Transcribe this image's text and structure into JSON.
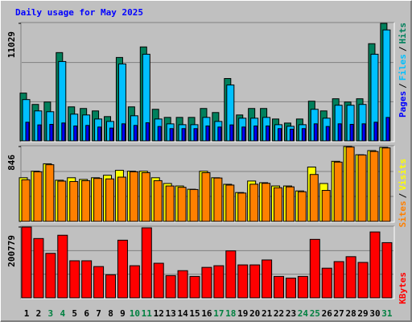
{
  "chart_data": {
    "type": "bar",
    "title": "Daily usage for May 2025",
    "categories": [
      "1",
      "2",
      "3",
      "4",
      "5",
      "6",
      "7",
      "8",
      "9",
      "10",
      "11",
      "12",
      "13",
      "14",
      "15",
      "16",
      "17",
      "18",
      "19",
      "20",
      "21",
      "22",
      "23",
      "24",
      "25",
      "26",
      "27",
      "28",
      "29",
      "30",
      "31"
    ],
    "label_colors": [
      "#000000",
      "#000000",
      "#008040",
      "#008040",
      "#000000",
      "#000000",
      "#000000",
      "#000000",
      "#000000",
      "#008040",
      "#008040",
      "#000000",
      "#000000",
      "#000000",
      "#000000",
      "#000000",
      "#008040",
      "#008040",
      "#000000",
      "#000000",
      "#000000",
      "#000000",
      "#000000",
      "#008040",
      "#008040",
      "#000000",
      "#000000",
      "#000000",
      "#000000",
      "#000000",
      "#008040"
    ],
    "legend_separator": "/",
    "panels": [
      {
        "ylim": [
          0,
          11029
        ],
        "yticks": [
          11029
        ],
        "series": [
          {
            "name": "Hits",
            "color": "#00805C",
            "values": [
              4484,
              3420,
              3648,
              8284,
              3192,
              3040,
              2812,
              2280,
              7828,
              3192,
              8816,
              2964,
              2204,
              2204,
              2204,
              3040,
              2660,
              5852,
              2432,
              3040,
              3040,
              2052,
              1672,
              2052,
              3724,
              2812,
              3952,
              3648,
              3952,
              9120,
              11029
            ]
          },
          {
            "name": "Files",
            "color": "#00C0FF",
            "values": [
              3876,
              2812,
              2736,
              7448,
              2508,
              2432,
              2052,
              1824,
              7220,
              2356,
              8132,
              2052,
              1596,
              1520,
              1520,
              2204,
              1824,
              5244,
              2128,
              2128,
              2204,
              1520,
              1368,
              1520,
              2964,
              2128,
              3344,
              3344,
              3420,
              8132,
              10412
            ]
          },
          {
            "name": "Pages",
            "color": "#0000FF",
            "values": [
              1750,
              1500,
              1550,
              1680,
              1400,
              1450,
              1300,
              1200,
              1600,
              1450,
              1700,
              1350,
              1150,
              1150,
              1150,
              1400,
              1300,
              1500,
              1300,
              1400,
              1400,
              1150,
              1100,
              1150,
              1600,
              1350,
              1600,
              1550,
              1600,
              1750,
              2200
            ]
          }
        ]
      },
      {
        "ylim": [
          0,
          846
        ],
        "yticks": [
          846
        ],
        "series": [
          {
            "name": "Visits",
            "color": "#FFFF00",
            "values": [
              493,
              567,
              651,
              465,
              493,
              474,
              493,
              521,
              577,
              567,
              567,
              493,
              428,
              400,
              363,
              567,
              493,
              419,
              326,
              456,
              437,
              400,
              400,
              344,
              614,
              428,
              679,
              846,
              753,
              800,
              837
            ]
          },
          {
            "name": "Sites",
            "color": "#FF8000",
            "values": [
              470,
              560,
              640,
              455,
              450,
              460,
              485,
              480,
              500,
              560,
              550,
              460,
              400,
              385,
              360,
              550,
              490,
              410,
              320,
              420,
              430,
              380,
              390,
              335,
              530,
              350,
              670,
              840,
              750,
              790,
              830
            ]
          }
        ]
      },
      {
        "ylim": [
          0,
          200779
        ],
        "yticks": [
          200779
        ],
        "series": [
          {
            "name": "KBytes",
            "color": "#FF0000",
            "values": [
              200779,
              168120,
              126090,
              177460,
              105075,
              105075,
              88730,
              65380,
              163450,
              91065,
              198475,
              98070,
              63045,
              77055,
              60710,
              86395,
              91065,
              133095,
              93400,
              93400,
              107410,
              60710,
              56040,
              60710,
              165785,
              84060,
              102740,
              116750,
              100405,
              186800,
              156445
            ]
          }
        ]
      }
    ]
  }
}
